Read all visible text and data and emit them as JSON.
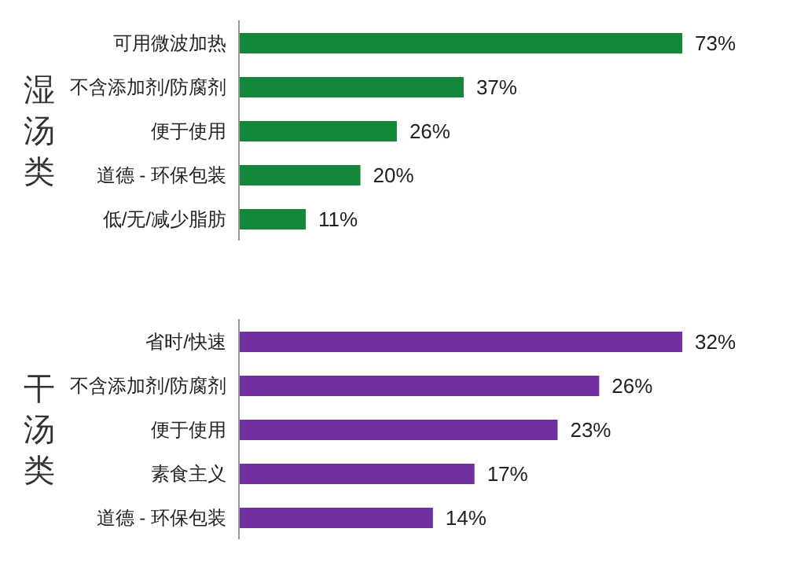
{
  "chart_data": [
    {
      "type": "bar",
      "orientation": "horizontal",
      "ylabel": "湿汤类",
      "categories": [
        "可用微波加热",
        "不含添加剂/防腐剂",
        "便于使用",
        "道德 - 环保包装",
        "低/无/减少脂肪"
      ],
      "values": [
        73,
        37,
        26,
        20,
        11
      ],
      "value_labels": [
        "73%",
        "37%",
        "26%",
        "20%",
        "11%"
      ],
      "color": "#13873a",
      "tick_labels": "y"
    },
    {
      "type": "bar",
      "orientation": "horizontal",
      "ylabel": "干汤类",
      "categories": [
        "省时/快速",
        "不含添加剂/防腐剂",
        "便于使用",
        "素食主义",
        "道德 - 环保包装"
      ],
      "values": [
        32,
        26,
        23,
        17,
        14
      ],
      "value_labels": [
        "32%",
        "26%",
        "23%",
        "17%",
        "14%"
      ],
      "color": "#7030a0",
      "tick_labels": "y"
    }
  ]
}
